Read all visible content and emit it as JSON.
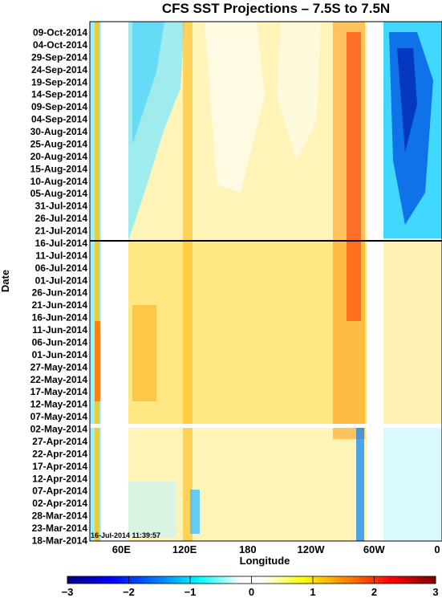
{
  "chart_data": {
    "type": "heatmap",
    "title": "CFS SST Projections – 7.5S to 7.5N",
    "xlabel": "Longitude",
    "ylabel": "Date",
    "x_ticks": [
      "60E",
      "120E",
      "180",
      "120W",
      "60W",
      "0"
    ],
    "y_ticks": [
      "09-Oct-2014",
      "04-Oct-2014",
      "29-Sep-2014",
      "24-Sep-2014",
      "19-Sep-2014",
      "14-Sep-2014",
      "09-Sep-2014",
      "04-Sep-2014",
      "30-Aug-2014",
      "25-Aug-2014",
      "20-Aug-2014",
      "15-Aug-2014",
      "10-Aug-2014",
      "05-Aug-2014",
      "31-Jul-2014",
      "26-Jul-2014",
      "21-Jul-2014",
      "16-Jul-2014",
      "11-Jul-2014",
      "06-Jul-2014",
      "01-Jul-2014",
      "26-Jun-2014",
      "21-Jun-2014",
      "16-Jun-2014",
      "11-Jun-2014",
      "06-Jun-2014",
      "01-Jun-2014",
      "27-May-2014",
      "22-May-2014",
      "17-May-2014",
      "12-May-2014",
      "07-May-2014",
      "02-May-2014",
      "27-Apr-2014",
      "22-Apr-2014",
      "17-Apr-2014",
      "12-Apr-2014",
      "07-Apr-2014",
      "02-Apr-2014",
      "28-Mar-2014",
      "23-Mar-2014",
      "18-Mar-2014"
    ],
    "current_date_line": "16-Jul-2014",
    "timestamp": "16-Jul-2014 11:39:57",
    "colorbar_ticks": [
      "−3",
      "−2",
      "−1",
      "0",
      "1",
      "2",
      "3"
    ],
    "colorbar_range": [
      -3,
      3
    ],
    "colormap": [
      "#00007f",
      "#0000ff",
      "#0080ff",
      "#00ffff",
      "#ffffff",
      "#ffff00",
      "#ff8000",
      "#ff0000",
      "#7f0000"
    ],
    "grid": false
  }
}
